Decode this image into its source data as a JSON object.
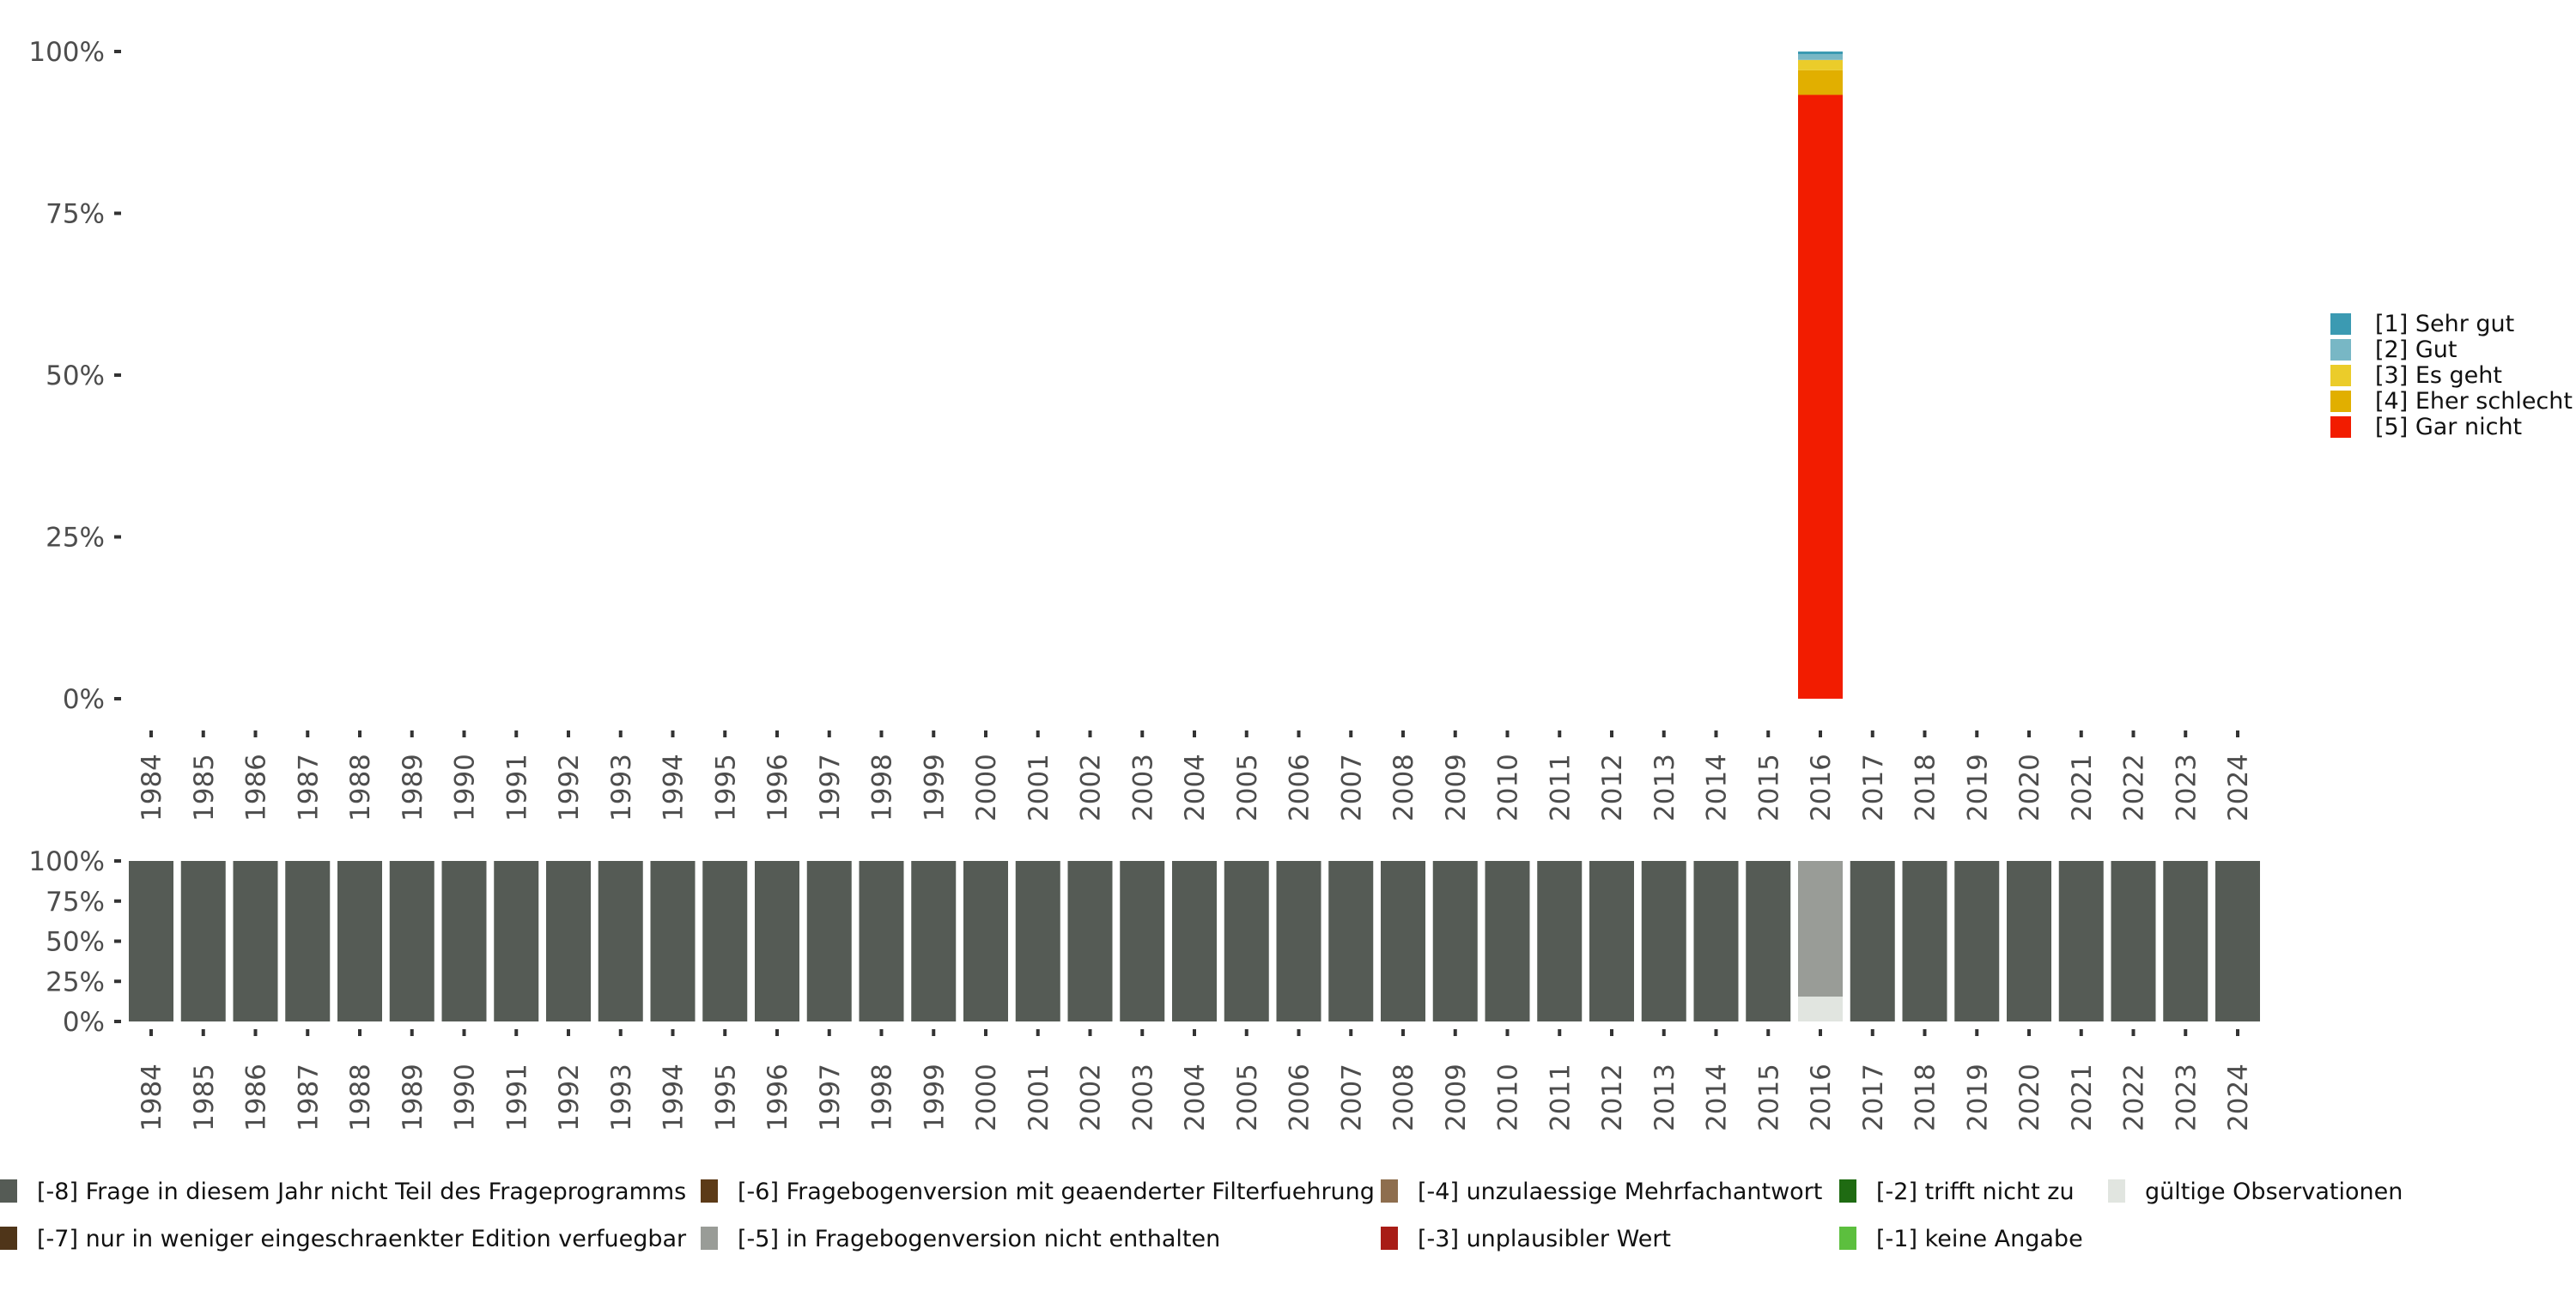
{
  "chart_data": [
    {
      "type": "bar",
      "stacked": true,
      "title": "",
      "xlabel": "",
      "ylabel": "",
      "ylim": [
        0,
        100
      ],
      "y_ticks": [
        "0%",
        "25%",
        "50%",
        "75%",
        "100%"
      ],
      "categories": [
        "1984",
        "1985",
        "1986",
        "1987",
        "1988",
        "1989",
        "1990",
        "1991",
        "1992",
        "1993",
        "1994",
        "1995",
        "1996",
        "1997",
        "1998",
        "1999",
        "2000",
        "2001",
        "2002",
        "2003",
        "2004",
        "2005",
        "2006",
        "2007",
        "2008",
        "2009",
        "2010",
        "2011",
        "2012",
        "2013",
        "2014",
        "2015",
        "2016",
        "2017",
        "2018",
        "2019",
        "2020",
        "2021",
        "2022",
        "2023",
        "2024"
      ],
      "legend_position": "right",
      "series": [
        {
          "name": "[5] Gar nicht",
          "color": "#F21C00",
          "values": {
            "2016": 93.3
          }
        },
        {
          "name": "[4] Eher schlecht",
          "color": "#E1AF00",
          "values": {
            "2016": 3.8
          }
        },
        {
          "name": "[3] Es geht",
          "color": "#EBCC2A",
          "values": {
            "2016": 1.6
          }
        },
        {
          "name": "[2] Gut",
          "color": "#78B7C5",
          "values": {
            "2016": 0.9
          }
        },
        {
          "name": "[1] Sehr gut",
          "color": "#3B9AB2",
          "values": {
            "2016": 0.4
          }
        }
      ],
      "legend_order": [
        "[1] Sehr gut",
        "[2] Gut",
        "[3] Es geht",
        "[4] Eher schlecht",
        "[5] Gar nicht"
      ]
    },
    {
      "type": "bar",
      "stacked": true,
      "ylim": [
        0,
        100
      ],
      "y_ticks": [
        "0%",
        "25%",
        "50%",
        "75%",
        "100%"
      ],
      "categories": [
        "1984",
        "1985",
        "1986",
        "1987",
        "1988",
        "1989",
        "1990",
        "1991",
        "1992",
        "1993",
        "1994",
        "1995",
        "1996",
        "1997",
        "1998",
        "1999",
        "2000",
        "2001",
        "2002",
        "2003",
        "2004",
        "2005",
        "2006",
        "2007",
        "2008",
        "2009",
        "2010",
        "2011",
        "2012",
        "2013",
        "2014",
        "2015",
        "2016",
        "2017",
        "2018",
        "2019",
        "2020",
        "2021",
        "2022",
        "2023",
        "2024"
      ],
      "legend_position": "bottom",
      "default_series": "[-8] Frage in diesem Jahr nicht Teil des Frageprogramms",
      "overrides": {
        "2016": [
          {
            "name": "gültige Observationen",
            "value": 15.5
          },
          {
            "name": "[-5] in Fragebogenversion nicht enthalten",
            "value": 84.5
          }
        ]
      },
      "legend": [
        {
          "name": "[-8] Frage in diesem Jahr nicht Teil des Frageprogramms",
          "color": "#555B55"
        },
        {
          "name": "[-7] nur in weniger eingeschraenkter Edition verfuegbar",
          "color": "#4F3519"
        },
        {
          "name": "[-6] Fragebogenversion mit geaenderter Filterfuehrung",
          "color": "#5C3A17"
        },
        {
          "name": "[-5] in Fragebogenversion nicht enthalten",
          "color": "#999C97"
        },
        {
          "name": "[-4] unzulaessige Mehrfachantwort",
          "color": "#8E6E4E"
        },
        {
          "name": "[-3] unplausibler Wert",
          "color": "#A81C16"
        },
        {
          "name": "[-2] trifft nicht zu",
          "color": "#1F6B12"
        },
        {
          "name": "[-1] keine Angabe",
          "color": "#5CBF3E"
        },
        {
          "name": "gültige Observationen",
          "color": "#E1E5E0"
        }
      ]
    }
  ]
}
